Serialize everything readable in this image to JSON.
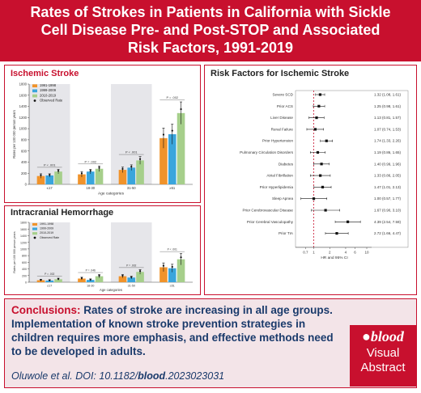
{
  "header": {
    "title_lines": [
      "Rates of Strokes in Patients in California with Sickle",
      "Cell Disease Pre- and Post-STOP and Associated",
      "Risk Factors, 1991-2019"
    ]
  },
  "colors": {
    "brand_red": "#c8102e",
    "period_1991_1998": "#f0932b",
    "period_1999_2009": "#3aa5dc",
    "period_2010_2019": "#a6cf8b",
    "observed": "#111111",
    "conclusion_text": "#1a3a6b",
    "conclusion_bg": "#f3e4e8"
  },
  "panels": {
    "ischemic_title": "Ischemic Stroke",
    "ich_title": "Intracranial Hemorrhage",
    "risk_title": "Risk Factors for Ischemic Stroke"
  },
  "chart_data": [
    {
      "type": "bar",
      "name_shown": "Ischemic Stroke",
      "categories": [
        "≤17",
        "18-30",
        "31-50",
        "≥51"
      ],
      "xlabel": "Age categories",
      "ylabel": "Rates per 100 000 person years",
      "ylim": [
        0,
        1800
      ],
      "yticks": [
        0,
        200,
        400,
        600,
        800,
        1000,
        1200,
        1400,
        1600,
        1800
      ],
      "legend": [
        "1991-1998",
        "1999-2009",
        "2010-2019",
        "Observed Rate"
      ],
      "legend_position": "top-left",
      "grid": false,
      "shaded_categories": [
        "≤17",
        "31-50"
      ],
      "series": [
        {
          "name": "1991-1998",
          "values": [
            150,
            180,
            260,
            830
          ]
        },
        {
          "name": "1999-2009",
          "values": [
            160,
            230,
            300,
            900
          ]
        },
        {
          "name": "2010-2019",
          "values": [
            230,
            280,
            430,
            1280
          ]
        }
      ],
      "errors": [
        [
          [
            110,
            190
          ],
          [
            130,
            230
          ],
          [
            210,
            310
          ],
          [
            650,
            1010
          ]
        ],
        [
          [
            130,
            190
          ],
          [
            190,
            270
          ],
          [
            250,
            350
          ],
          [
            720,
            1080
          ]
        ],
        [
          [
            190,
            270
          ],
          [
            230,
            330
          ],
          [
            360,
            500
          ],
          [
            1080,
            1480
          ]
        ]
      ],
      "p_labels": [
        "P < .001",
        "P = .002",
        "P < .001",
        "P = .002"
      ]
    },
    {
      "type": "bar",
      "name_shown": "Intracranial Hemorrhage",
      "categories": [
        "≤17",
        "18-30",
        "31-50",
        "≥51"
      ],
      "xlabel": "Age categories",
      "ylabel": "Rates per 100 000 person years",
      "ylim": [
        0,
        1800
      ],
      "yticks": [
        0,
        200,
        400,
        600,
        800,
        1000,
        1200,
        1400,
        1600,
        1800
      ],
      "legend": [
        "1991-1998",
        "1999-2009",
        "2010-2019",
        "Observed Rate"
      ],
      "legend_position": "top-left",
      "grid": false,
      "shaded_categories": [
        "≤17",
        "31-50"
      ],
      "series": [
        {
          "name": "1991-1998",
          "values": [
            60,
            110,
            180,
            450
          ]
        },
        {
          "name": "1999-2009",
          "values": [
            50,
            70,
            140,
            420
          ]
        },
        {
          "name": "2010-2019",
          "values": [
            90,
            180,
            310,
            690
          ]
        }
      ],
      "errors": [
        [
          [
            30,
            90
          ],
          [
            70,
            150
          ],
          [
            130,
            230
          ],
          [
            320,
            580
          ]
        ],
        [
          [
            25,
            75
          ],
          [
            40,
            100
          ],
          [
            100,
            180
          ],
          [
            300,
            540
          ]
        ],
        [
          [
            60,
            120
          ],
          [
            130,
            230
          ],
          [
            240,
            380
          ],
          [
            520,
            860
          ]
        ]
      ],
      "p_labels": [
        "P = .002",
        "P = .046",
        "P = .002",
        "P < .001"
      ]
    },
    {
      "type": "scatter",
      "name_shown": "Risk Factors for Ischemic Stroke",
      "chart_style": "forest plot",
      "xlabel": "HR and 95% CI",
      "x_scale": "log",
      "xticks": [
        "0.7",
        "1",
        "2",
        "4",
        "6",
        "10"
      ],
      "reference_line": 1,
      "factors": [
        "Severe SCD",
        "Prior ACS",
        "Liver Disease",
        "Renal Failure",
        "Prior Hypertension",
        "Pulmonary Circulation Disorders",
        "Diabetes",
        "Atrial Fibrillation",
        "Prior Hyperlipidemia",
        "Sleep Apnea",
        "Prior Cerebrovascular Disease",
        "Prior Cerebral Vasculopathy",
        "Prior TIA"
      ],
      "hr": [
        1.32,
        1.25,
        1.13,
        1.07,
        1.74,
        1.19,
        1.4,
        1.33,
        1.47,
        1.0,
        1.67,
        4.39,
        2.72
      ],
      "ci_low": [
        1.08,
        0.98,
        0.81,
        0.74,
        1.33,
        0.86,
        0.99,
        0.86,
        1.01,
        0.57,
        0.9,
        2.54,
        1.66
      ],
      "ci_high": [
        1.61,
        1.61,
        1.57,
        1.53,
        2.26,
        1.65,
        1.96,
        2.05,
        2.13,
        1.77,
        3.1,
        7.59,
        4.47
      ],
      "labels": [
        "1.32 (1.08, 1.61)",
        "1.25 (0.98, 1.61)",
        "1.13 (0.81, 1.57)",
        "1.07 (0.74, 1.53)",
        "1.74 (1.33, 2.26)",
        "1.19 (0.86, 1.65)",
        "1.40 (0.99, 1.96)",
        "1.33 (0.86, 2.05)",
        "1.47 (1.01, 2.13)",
        "1.00 (0.57, 1.77)",
        "1.67 (0.90, 3.10)",
        "4.39 (2.54, 7.59)",
        "2.72 (1.66, 4.47)"
      ]
    }
  ],
  "conclusions": {
    "label": "Conclusions:",
    "text": " Rates of stroke are increasing in all age groups. Implementation of known stroke prevention strategies in children requires more emphasis, and effective methods need to be developed in adults.",
    "citation_prefix": "Oluwole et al. DOI: 10.1182/",
    "citation_journal": "blood",
    "citation_suffix": ".2023023031"
  },
  "logo": {
    "brand": "blood",
    "line1": "Visual",
    "line2": "Abstract"
  }
}
